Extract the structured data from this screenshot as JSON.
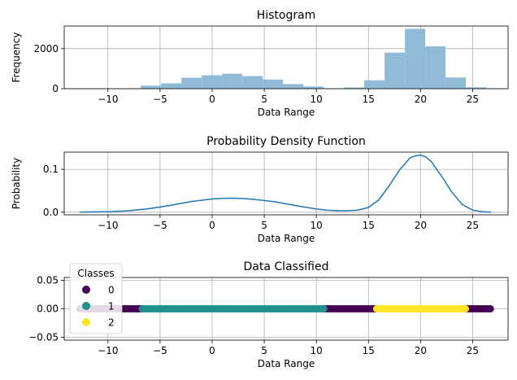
{
  "chart_data": [
    {
      "type": "bar",
      "title": "Histogram",
      "xlabel": "Data Range",
      "ylabel": "Frequency",
      "xlim": [
        -14.2,
        28.4
      ],
      "ylim": [
        0,
        3130
      ],
      "xticks": [
        -10,
        -5,
        0,
        5,
        10,
        15,
        20,
        25
      ],
      "yticks": [
        0,
        2000
      ],
      "grid": true,
      "color": "#8fbbd9",
      "bin_start": -12.7,
      "bin_width": 1.95,
      "values": [
        2,
        10,
        20,
        150,
        270,
        550,
        670,
        750,
        630,
        460,
        230,
        110,
        20,
        60,
        420,
        1800,
        2990,
        2120,
        560,
        70
      ]
    },
    {
      "type": "line",
      "title": "Probability Density Function",
      "xlabel": "Data Range",
      "ylabel": "Probability",
      "xlim": [
        -14.2,
        28.4
      ],
      "ylim": [
        -0.006,
        0.14
      ],
      "xticks": [
        -10,
        -5,
        0,
        5,
        10,
        15,
        20,
        25
      ],
      "yticks": [
        0.0,
        0.1
      ],
      "ytick_labels": [
        "0.0",
        "0.1"
      ],
      "grid": true,
      "color": "#1f77b4",
      "x": [
        -12.7,
        -10,
        -8,
        -6,
        -4,
        -2,
        0,
        1,
        2,
        3,
        4,
        6,
        8,
        10,
        11,
        12,
        13,
        14,
        15,
        16,
        17,
        18,
        19,
        19.5,
        20,
        20.5,
        21,
        22,
        23,
        24,
        25,
        26,
        26.8
      ],
      "y": [
        0.0003,
        0.0012,
        0.0035,
        0.0085,
        0.016,
        0.025,
        0.031,
        0.0325,
        0.0328,
        0.032,
        0.03,
        0.0245,
        0.0155,
        0.0075,
        0.005,
        0.0036,
        0.0035,
        0.0049,
        0.011,
        0.029,
        0.062,
        0.099,
        0.127,
        0.1315,
        0.133,
        0.129,
        0.119,
        0.085,
        0.047,
        0.018,
        0.005,
        0.001,
        0.0002
      ]
    },
    {
      "type": "scatter",
      "title": "Data Classified",
      "xlabel": "Data Range",
      "xlim": [
        -14.2,
        28.4
      ],
      "ylim": [
        -0.055,
        0.055
      ],
      "xticks": [
        -10,
        -5,
        0,
        5,
        10,
        15,
        20,
        25
      ],
      "yticks": [
        -0.05,
        0.0,
        0.05
      ],
      "ytick_labels": [
        "−0.05",
        "0.00",
        "0.05"
      ],
      "grid": true,
      "y_value": 0.0,
      "legend": {
        "title": "Classes",
        "placement": "upper-left",
        "entries": [
          {
            "label": "0",
            "color": "#440154"
          },
          {
            "label": "1",
            "color": "#21918c"
          },
          {
            "label": "2",
            "color": "#fde725"
          }
        ]
      },
      "series": [
        {
          "class": "0",
          "color": "#440154",
          "x_ranges": [
            [
              -12.7,
              -6.7
            ],
            [
              10.7,
              15.8
            ],
            [
              24.3,
              26.7
            ]
          ]
        },
        {
          "class": "1",
          "color": "#21918c",
          "x_ranges": [
            [
              -6.7,
              10.7
            ]
          ]
        },
        {
          "class": "2",
          "color": "#fde725",
          "x_ranges": [
            [
              15.8,
              24.3
            ]
          ]
        }
      ]
    }
  ]
}
